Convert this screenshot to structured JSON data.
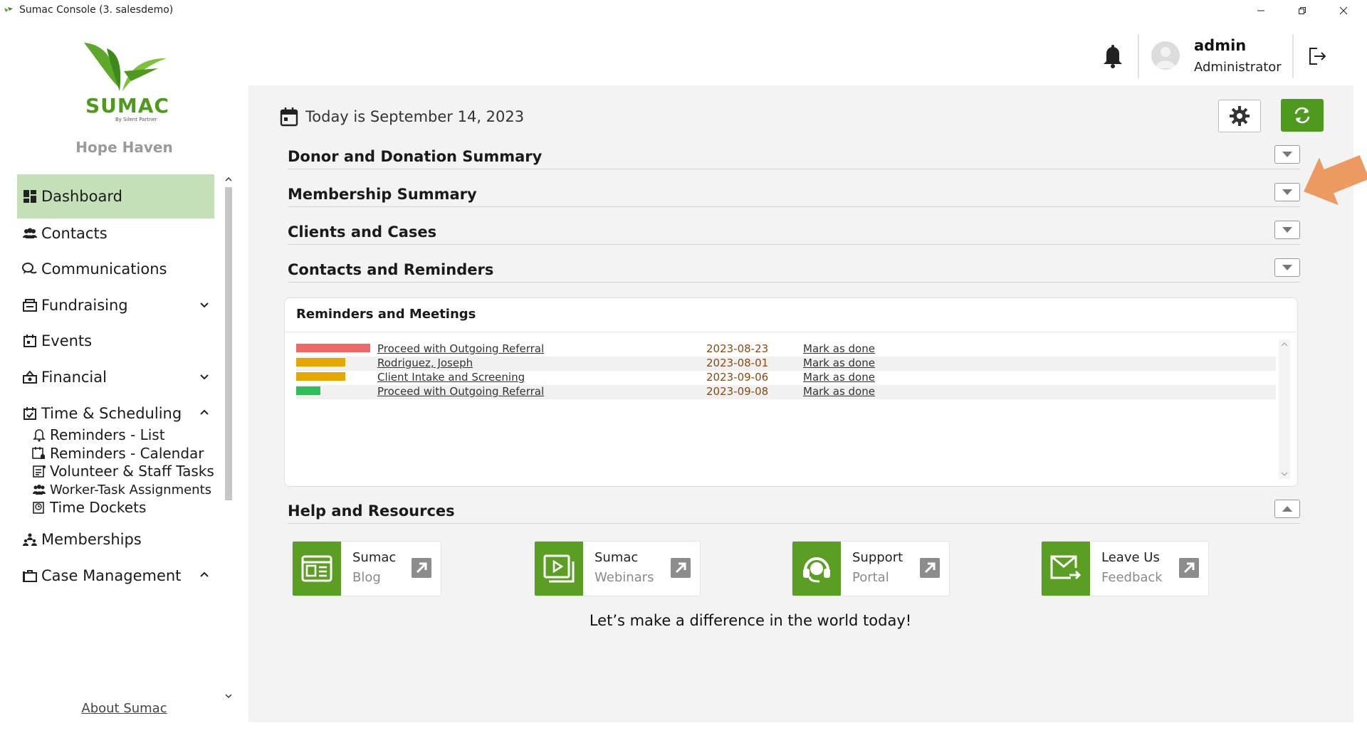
{
  "window": {
    "title": "Sumac Console (3. salesdemo)"
  },
  "sidebar": {
    "org_name": "Hope Haven",
    "logo_text": "SUMAC",
    "logo_subtext": "By Silent Partner",
    "items": [
      {
        "label": "Dashboard",
        "icon": "dashboard-icon",
        "active": true
      },
      {
        "label": "Contacts",
        "icon": "contacts-icon"
      },
      {
        "label": "Communications",
        "icon": "communications-icon"
      },
      {
        "label": "Fundraising",
        "icon": "fundraising-icon",
        "chevron": "down"
      },
      {
        "label": "Events",
        "icon": "events-icon"
      },
      {
        "label": "Financial",
        "icon": "financial-icon",
        "chevron": "down"
      },
      {
        "label": "Time & Scheduling",
        "icon": "calendar-icon",
        "chevron": "up"
      },
      {
        "label": "Memberships",
        "icon": "memberships-icon"
      },
      {
        "label": "Case Management",
        "icon": "case-icon",
        "chevron": "up"
      }
    ],
    "sub_items": [
      {
        "label": "Reminders - List",
        "icon": "bell-icon"
      },
      {
        "label": "Reminders - Calendar",
        "icon": "calendar-bell-icon"
      },
      {
        "label": "Volunteer & Staff Tasks",
        "icon": "tasks-icon"
      },
      {
        "label": "Worker-Task Assignments",
        "icon": "workers-icon"
      },
      {
        "label": "Time Dockets",
        "icon": "docket-icon"
      }
    ],
    "about_label": "About Sumac"
  },
  "header": {
    "user_name": "admin",
    "user_role": "Administrator"
  },
  "main": {
    "date_text": "Today is September 14, 2023",
    "sections": [
      {
        "title": "Donor and Donation Summary",
        "state": "collapsed"
      },
      {
        "title": "Membership Summary",
        "state": "collapsed"
      },
      {
        "title": "Clients and Cases",
        "state": "collapsed"
      },
      {
        "title": "Contacts and Reminders",
        "state": "collapsed"
      }
    ],
    "reminders": {
      "title": "Reminders and Meetings",
      "rows": [
        {
          "name": "Proceed with Outgoing Referral",
          "date": "2023-08-23",
          "action": "Mark as done",
          "bar_color": "#f06767",
          "bar_level": 1.0
        },
        {
          "name": "Rodriguez, Joseph",
          "date": "2023-08-01",
          "action": "Mark as done",
          "bar_color": "#e6a800",
          "bar_level": 0.66
        },
        {
          "name": "Client Intake and Screening",
          "date": "2023-09-06",
          "action": "Mark as done",
          "bar_color": "#e6a800",
          "bar_level": 0.66
        },
        {
          "name": "Proceed with Outgoing Referral",
          "date": "2023-09-08",
          "action": "Mark as done",
          "bar_color": "#2ebd5a",
          "bar_level": 0.33
        }
      ]
    },
    "help_section": {
      "title": "Help and Resources",
      "state": "expanded"
    },
    "resources": [
      {
        "line1": "Sumac",
        "line2": "Blog",
        "icon": "blog-icon"
      },
      {
        "line1": "Sumac",
        "line2": "Webinars",
        "icon": "webinar-icon"
      },
      {
        "line1": "Support",
        "line2": "Portal",
        "icon": "support-icon"
      },
      {
        "line1": "Leave Us",
        "line2": "Feedback",
        "icon": "feedback-icon"
      }
    ],
    "tagline": "Let’s make a difference in the world today!"
  },
  "colors": {
    "brand_green": "#4e9a1f",
    "active_nav": "#c4e0b9",
    "annotation_arrow": "#ec9a62"
  }
}
